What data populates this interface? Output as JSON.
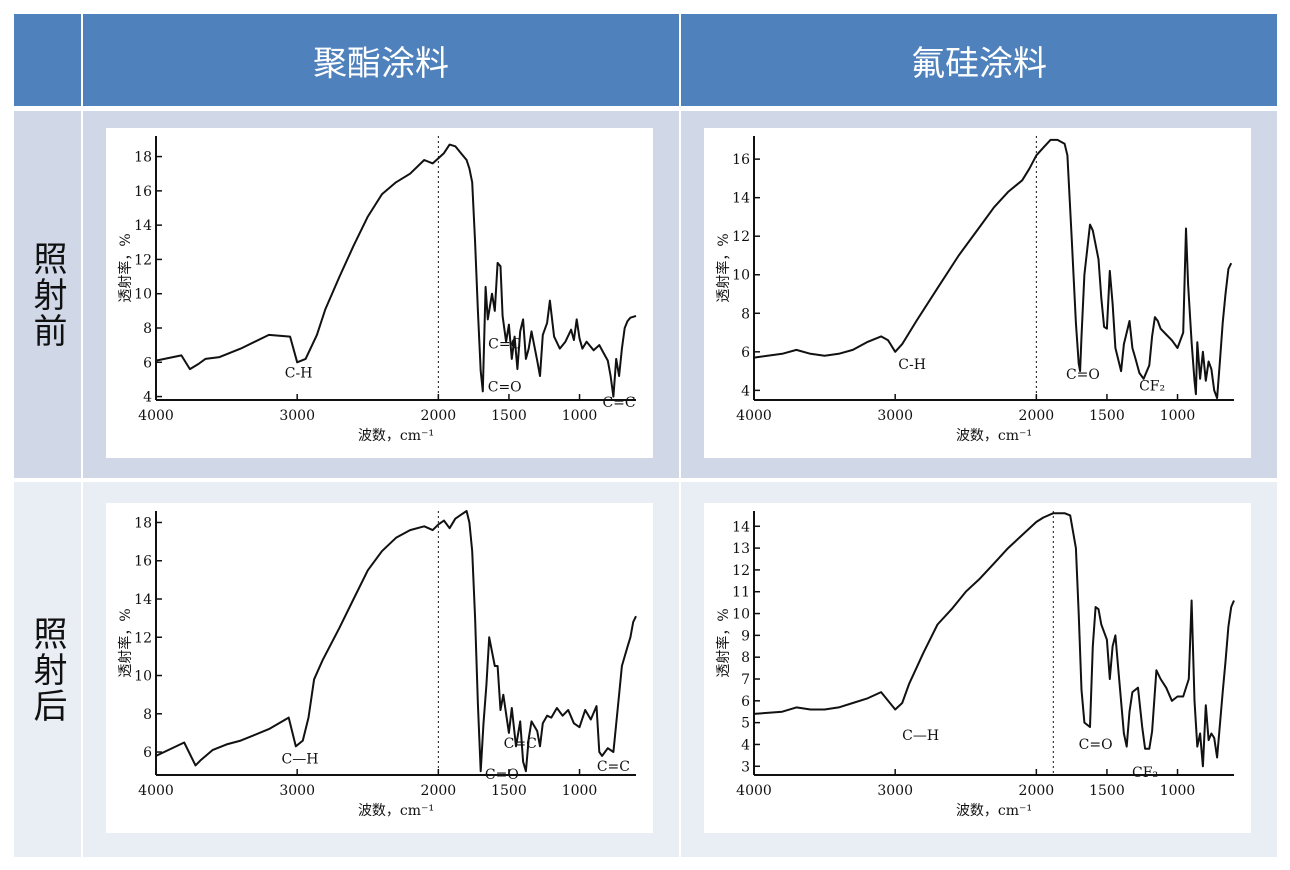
{
  "colors": {
    "header_bg": "#4f81bd",
    "row_a": "#d0d8e8",
    "row_b": "#e9edf4",
    "grid_line": "#ffffff"
  },
  "table": {
    "columns": [
      "聚酯涂料",
      "氟硅涂料"
    ],
    "rows": [
      "照射前",
      "照射后"
    ]
  },
  "chart_data": [
    {
      "type": "line",
      "panel": "聚酯涂料-照射前",
      "xlabel": "波数，cm⁻¹",
      "ylabel": "透射率，%",
      "xlim": [
        4000,
        600
      ],
      "ylim": [
        3.8,
        19.2
      ],
      "xticks": [
        4000,
        3000,
        2000,
        1500,
        1000
      ],
      "yticks": [
        4,
        6,
        8,
        10,
        12,
        14,
        16,
        18
      ],
      "dashed_x": 2000,
      "annotations": [
        {
          "text": "C-H",
          "x": 2990,
          "y": 5.1
        },
        {
          "text": "C=C",
          "x": 1530,
          "y": 6.8
        },
        {
          "text": "C=O",
          "x": 1530,
          "y": 4.3
        },
        {
          "text": "C=C",
          "x": 720,
          "y": 3.4
        }
      ],
      "x": [
        4000,
        3820,
        3760,
        3700,
        3650,
        3550,
        3400,
        3200,
        3050,
        3000,
        2940,
        2860,
        2800,
        2700,
        2600,
        2500,
        2400,
        2300,
        2200,
        2100,
        2040,
        2000,
        1960,
        1920,
        1880,
        1840,
        1800,
        1780,
        1760,
        1740,
        1720,
        1700,
        1685,
        1665,
        1650,
        1620,
        1600,
        1580,
        1560,
        1545,
        1520,
        1500,
        1480,
        1460,
        1440,
        1420,
        1400,
        1380,
        1360,
        1340,
        1300,
        1280,
        1260,
        1230,
        1210,
        1180,
        1140,
        1100,
        1060,
        1040,
        1020,
        1000,
        980,
        950,
        900,
        860,
        820,
        800,
        780,
        760,
        740,
        720,
        700,
        680,
        660,
        640,
        600
      ],
      "y": [
        6.1,
        6.4,
        5.6,
        5.9,
        6.2,
        6.3,
        6.8,
        7.6,
        7.5,
        6.0,
        6.2,
        7.6,
        9.1,
        11.0,
        12.8,
        14.5,
        15.8,
        16.5,
        17.0,
        17.8,
        17.6,
        17.9,
        18.2,
        18.7,
        18.6,
        18.2,
        17.8,
        17.3,
        16.5,
        13.0,
        9.0,
        5.5,
        4.3,
        10.4,
        8.5,
        10.0,
        9.0,
        11.8,
        11.6,
        8.7,
        7.2,
        8.2,
        6.2,
        7.5,
        5.6,
        7.8,
        8.5,
        6.2,
        6.8,
        7.8,
        6.1,
        5.2,
        7.6,
        8.3,
        9.6,
        7.5,
        6.8,
        7.2,
        7.9,
        7.3,
        8.5,
        7.4,
        6.8,
        7.2,
        6.7,
        7.0,
        6.4,
        6.1,
        5.2,
        4.0,
        6.2,
        5.2,
        6.8,
        8.0,
        8.4,
        8.6,
        8.7
      ]
    },
    {
      "type": "line",
      "panel": "氟硅涂料-照射前",
      "xlabel": "波数，cm⁻¹",
      "ylabel": "透射率，%",
      "xlim": [
        4000,
        600
      ],
      "ylim": [
        3.5,
        17.2
      ],
      "xticks": [
        4000,
        3000,
        2000,
        1500,
        1000
      ],
      "yticks": [
        4,
        6,
        8,
        10,
        12,
        14,
        16
      ],
      "dashed_x": 2000,
      "annotations": [
        {
          "text": "C-H",
          "x": 2880,
          "y": 5.1
        },
        {
          "text": "C=O",
          "x": 1670,
          "y": 4.6
        },
        {
          "text": "CF₂",
          "x": 1180,
          "y": 4.0
        }
      ],
      "x": [
        4000,
        3800,
        3700,
        3600,
        3500,
        3400,
        3300,
        3200,
        3100,
        3050,
        3000,
        2950,
        2850,
        2700,
        2550,
        2400,
        2300,
        2200,
        2100,
        2050,
        2000,
        1950,
        1900,
        1850,
        1800,
        1780,
        1750,
        1720,
        1700,
        1690,
        1680,
        1660,
        1620,
        1600,
        1560,
        1540,
        1520,
        1500,
        1480,
        1460,
        1440,
        1400,
        1380,
        1340,
        1320,
        1300,
        1270,
        1240,
        1200,
        1180,
        1160,
        1140,
        1120,
        1080,
        1040,
        1000,
        960,
        940,
        925,
        900,
        880,
        870,
        860,
        840,
        820,
        800,
        780,
        760,
        740,
        720,
        700,
        680,
        660,
        640,
        620
      ],
      "y": [
        5.7,
        5.9,
        6.1,
        5.9,
        5.8,
        5.9,
        6.1,
        6.5,
        6.8,
        6.6,
        6.0,
        6.4,
        7.6,
        9.3,
        11.0,
        12.5,
        13.5,
        14.3,
        14.9,
        15.5,
        16.2,
        16.6,
        17.0,
        17.0,
        16.8,
        16.2,
        12.0,
        7.5,
        5.4,
        5.0,
        6.8,
        10.0,
        12.6,
        12.3,
        10.8,
        8.8,
        7.3,
        7.2,
        10.2,
        8.5,
        6.2,
        5.0,
        6.4,
        7.6,
        6.2,
        5.7,
        4.9,
        4.6,
        5.3,
        6.8,
        7.8,
        7.6,
        7.2,
        6.9,
        6.6,
        6.2,
        7.0,
        12.4,
        9.5,
        6.5,
        4.5,
        3.8,
        6.5,
        4.6,
        6.0,
        4.5,
        5.5,
        5.1,
        4.0,
        3.6,
        5.5,
        7.5,
        9.0,
        10.3,
        10.6
      ]
    },
    {
      "type": "line",
      "panel": "聚酯涂料-照射后",
      "xlabel": "波数，cm⁻¹",
      "ylabel": "透射率，%",
      "xlim": [
        4000,
        600
      ],
      "ylim": [
        4.8,
        18.6
      ],
      "xticks": [
        4000,
        3000,
        2000,
        1500,
        1000
      ],
      "yticks": [
        6,
        8,
        10,
        12,
        14,
        16,
        18
      ],
      "dashed_x": 2000,
      "annotations": [
        {
          "text": "C—H",
          "x": 2980,
          "y": 5.4
        },
        {
          "text": "C=C",
          "x": 1420,
          "y": 6.2
        },
        {
          "text": "C=O",
          "x": 1550,
          "y": 4.6
        },
        {
          "text": "C=C",
          "x": 760,
          "y": 5.0
        }
      ],
      "x": [
        4000,
        3800,
        3720,
        3680,
        3600,
        3500,
        3400,
        3200,
        3060,
        3010,
        2960,
        2920,
        2880,
        2820,
        2700,
        2600,
        2500,
        2400,
        2300,
        2200,
        2100,
        2040,
        2000,
        1960,
        1920,
        1880,
        1840,
        1800,
        1780,
        1760,
        1740,
        1720,
        1700,
        1680,
        1660,
        1640,
        1600,
        1580,
        1560,
        1540,
        1500,
        1480,
        1450,
        1420,
        1400,
        1380,
        1360,
        1340,
        1300,
        1280,
        1260,
        1230,
        1200,
        1160,
        1120,
        1080,
        1040,
        1000,
        960,
        920,
        880,
        860,
        840,
        800,
        760,
        720,
        700,
        680,
        660,
        640,
        620,
        600
      ],
      "y": [
        5.8,
        6.5,
        5.3,
        5.6,
        6.1,
        6.4,
        6.6,
        7.2,
        7.8,
        6.3,
        6.6,
        7.8,
        9.8,
        10.8,
        12.5,
        14.0,
        15.5,
        16.5,
        17.2,
        17.6,
        17.8,
        17.6,
        17.9,
        18.1,
        17.7,
        18.2,
        18.4,
        18.6,
        18.0,
        16.5,
        13.0,
        8.5,
        5.0,
        7.5,
        9.5,
        12.0,
        10.5,
        10.5,
        8.2,
        9.0,
        7.0,
        8.3,
        6.3,
        7.6,
        5.5,
        5.0,
        6.7,
        7.6,
        7.1,
        6.3,
        7.5,
        7.9,
        7.8,
        8.3,
        7.9,
        8.2,
        7.5,
        7.3,
        8.2,
        7.7,
        8.4,
        6.0,
        5.8,
        6.2,
        6.0,
        9.0,
        10.5,
        11.0,
        11.5,
        12.0,
        12.8,
        13.1
      ]
    },
    {
      "type": "line",
      "panel": "氟硅涂料-照射后",
      "xlabel": "波数，cm⁻¹",
      "ylabel": "透射率，%",
      "xlim": [
        4000,
        600
      ],
      "ylim": [
        2.6,
        14.7
      ],
      "xticks": [
        4000,
        3000,
        2000,
        1500,
        1000
      ],
      "yticks": [
        3,
        4,
        5,
        6,
        7,
        8,
        9,
        10,
        11,
        12,
        13,
        14
      ],
      "dashed_x": 1880,
      "annotations": [
        {
          "text": "C—H",
          "x": 2820,
          "y": 4.2
        },
        {
          "text": "C=O",
          "x": 1580,
          "y": 3.8
        },
        {
          "text": "CF₂",
          "x": 1230,
          "y": 2.5
        }
      ],
      "x": [
        4000,
        3800,
        3700,
        3600,
        3500,
        3400,
        3300,
        3200,
        3100,
        3000,
        2950,
        2900,
        2850,
        2800,
        2700,
        2600,
        2500,
        2400,
        2300,
        2200,
        2100,
        2000,
        1950,
        1880,
        1840,
        1800,
        1760,
        1720,
        1700,
        1680,
        1660,
        1620,
        1600,
        1580,
        1560,
        1540,
        1500,
        1480,
        1460,
        1440,
        1420,
        1380,
        1360,
        1340,
        1320,
        1280,
        1250,
        1230,
        1200,
        1180,
        1150,
        1120,
        1080,
        1040,
        1000,
        960,
        920,
        900,
        880,
        860,
        840,
        820,
        800,
        780,
        760,
        740,
        720,
        700,
        680,
        660,
        640,
        620,
        600
      ],
      "y": [
        5.4,
        5.5,
        5.7,
        5.6,
        5.6,
        5.7,
        5.9,
        6.1,
        6.4,
        5.6,
        5.9,
        6.8,
        7.5,
        8.2,
        9.5,
        10.2,
        11.0,
        11.6,
        12.3,
        13.0,
        13.6,
        14.2,
        14.4,
        14.6,
        14.6,
        14.6,
        14.5,
        13.0,
        10.0,
        6.5,
        5.0,
        4.8,
        8.5,
        10.3,
        10.2,
        9.5,
        8.8,
        7.0,
        8.5,
        9.0,
        7.5,
        4.5,
        3.9,
        5.5,
        6.4,
        6.6,
        4.8,
        3.8,
        3.8,
        4.6,
        7.4,
        7.0,
        6.6,
        6.0,
        6.2,
        6.2,
        7.0,
        10.6,
        6.0,
        3.9,
        4.5,
        3.0,
        5.8,
        4.2,
        4.5,
        4.3,
        3.4,
        4.9,
        6.4,
        7.8,
        9.4,
        10.3,
        10.6
      ]
    }
  ]
}
